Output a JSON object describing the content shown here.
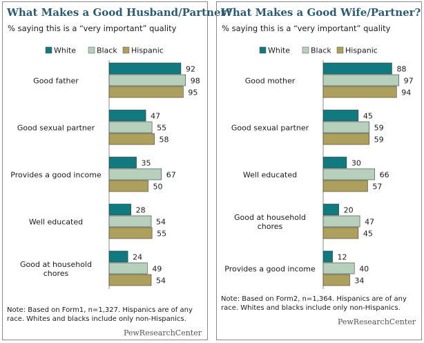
{
  "colors": {
    "white": "#117a80",
    "black": "#b6d0bc",
    "hispanic": "#ad9f5c",
    "title": "#2b5a73"
  },
  "chart_data": [
    {
      "type": "bar",
      "orientation": "horizontal",
      "title": "What Makes a Good Husband/Partner?",
      "subtitle": "% saying  this  is  a  “very  important”  quality",
      "categories": [
        "Good father",
        "Good sexual partner",
        "Provides a good income",
        "Well educated",
        "Good at household chores"
      ],
      "category_lines": [
        [
          "Good father"
        ],
        [
          "Good sexual partner"
        ],
        [
          "Provides a good income"
        ],
        [
          "Well educated"
        ],
        [
          "Good at household",
          "chores"
        ]
      ],
      "series": [
        {
          "name": "White",
          "values": [
            92,
            47,
            35,
            28,
            24
          ]
        },
        {
          "name": "Black",
          "values": [
            98,
            55,
            67,
            54,
            49
          ]
        },
        {
          "name": "Hispanic",
          "values": [
            95,
            58,
            50,
            55,
            54
          ]
        }
      ],
      "xlim": [
        0,
        100
      ],
      "legend": "top",
      "note": "Note: Based on Form1, n=1,327. Hispanics are of any race. Whites and blacks include only non-Hispanics.",
      "source": "PewResearchCenter"
    },
    {
      "type": "bar",
      "orientation": "horizontal",
      "title": "What Makes a Good Wife/Partner?",
      "subtitle": "% saying  this  is  a  “very  important”  quality",
      "categories": [
        "Good mother",
        "Good sexual partner",
        "Well educated",
        "Good at household chores",
        "Provides a good income"
      ],
      "category_lines": [
        [
          "Good mother"
        ],
        [
          "Good sexual partner"
        ],
        [
          "Well educated"
        ],
        [
          "Good at household",
          "chores"
        ],
        [
          "Provides a good income"
        ]
      ],
      "series": [
        {
          "name": "White",
          "values": [
            88,
            45,
            30,
            20,
            12
          ]
        },
        {
          "name": "Black",
          "values": [
            97,
            59,
            66,
            47,
            40
          ]
        },
        {
          "name": "Hispanic",
          "values": [
            94,
            59,
            57,
            45,
            34
          ]
        }
      ],
      "xlim": [
        0,
        100
      ],
      "legend": "top",
      "note": "Note: Based on Form2, n=1,364. Hispanics are of any race. Whites and blacks include only non-Hispanics.",
      "source": "PewResearchCenter"
    }
  ]
}
